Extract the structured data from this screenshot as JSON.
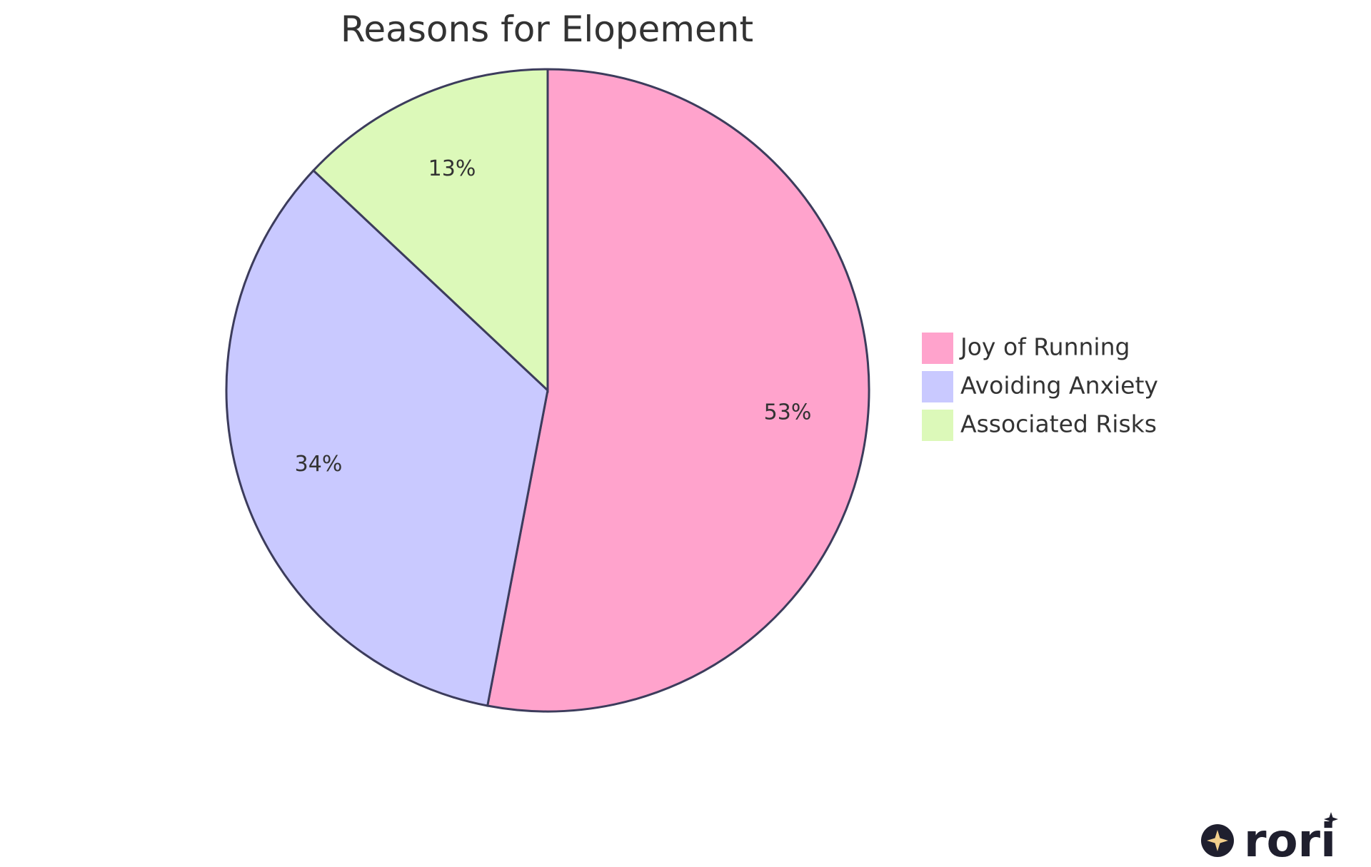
{
  "chart_data": {
    "type": "pie",
    "title": "Reasons for Elopement",
    "slices": [
      {
        "label": "Joy of Running",
        "value": 53,
        "display": "53%",
        "color": "#ffa3cc"
      },
      {
        "label": "Avoiding Anxiety",
        "value": 34,
        "display": "34%",
        "color": "#c9c9ff"
      },
      {
        "label": "Associated Risks",
        "value": 13,
        "display": "13%",
        "color": "#dcf9b9"
      }
    ],
    "legend_position": "right",
    "stroke_color": "#3c3c5c"
  },
  "logo": {
    "text": "rori",
    "star_color": "#f2cf8c",
    "color": "#1f1f2e"
  }
}
